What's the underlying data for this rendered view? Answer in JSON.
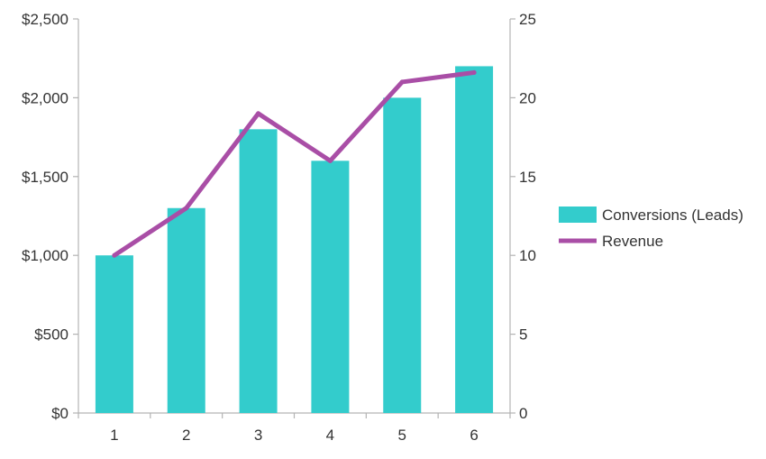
{
  "chart_data": {
    "type": "bar",
    "categories": [
      "1",
      "2",
      "3",
      "4",
      "5",
      "6"
    ],
    "series": [
      {
        "name": "Conversions (Leads)",
        "chart_type": "bar",
        "axis": "left",
        "color": "#33cccc",
        "values": [
          1000,
          1300,
          1800,
          1600,
          2000,
          2200
        ]
      },
      {
        "name": "Revenue",
        "chart_type": "line",
        "axis": "right",
        "color": "#a94ea6",
        "values": [
          10,
          13,
          19,
          16,
          21,
          21.6
        ]
      }
    ],
    "y_left": {
      "range": [
        0,
        2500
      ],
      "ticks": [
        0,
        500,
        1000,
        1500,
        2000,
        2500
      ],
      "tick_labels": [
        "$0",
        "$500",
        "$1,000",
        "$1,500",
        "$2,000",
        "$2,500"
      ]
    },
    "y_right": {
      "range": [
        0,
        25
      ],
      "ticks": [
        0,
        5,
        10,
        15,
        20,
        25
      ],
      "tick_labels": [
        "0",
        "5",
        "10",
        "15",
        "20",
        "25"
      ]
    },
    "title": "",
    "xlabel": "",
    "ylabel": "",
    "grid": false,
    "legend_position": "right"
  }
}
